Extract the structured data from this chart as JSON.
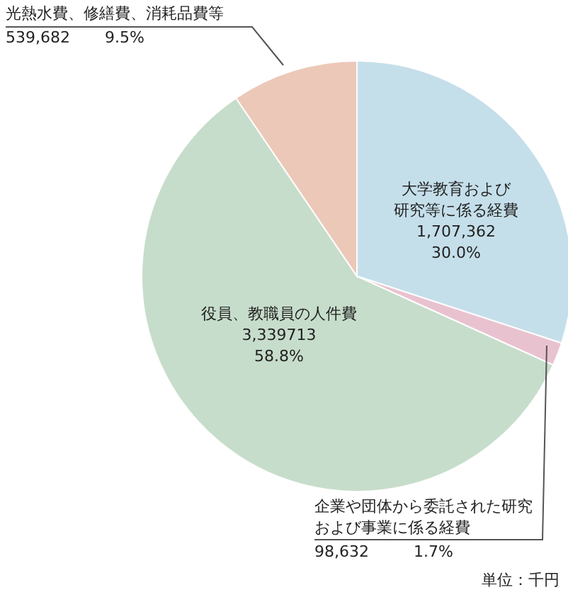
{
  "chart_data": {
    "type": "pie",
    "categories": [
      "大学教育および研究等に係る経費",
      "企業や団体から委託された研究および事業に係る経費",
      "役員、教職員の人件費",
      "光熱水費、修繕費、消耗品費等"
    ],
    "values": [
      1707362,
      98632,
      3339713,
      539682
    ],
    "value_labels": [
      "1,707,362\n30.0%",
      "98,632\n1.7%",
      "3,339713\n58.8%",
      "539,682\n9.5%"
    ],
    "colors": [
      "#c5dfea",
      "#e9c2d0",
      "#c7ddcb",
      "#ecc8b8"
    ],
    "annotations": [
      "単位：千円"
    ]
  }
}
